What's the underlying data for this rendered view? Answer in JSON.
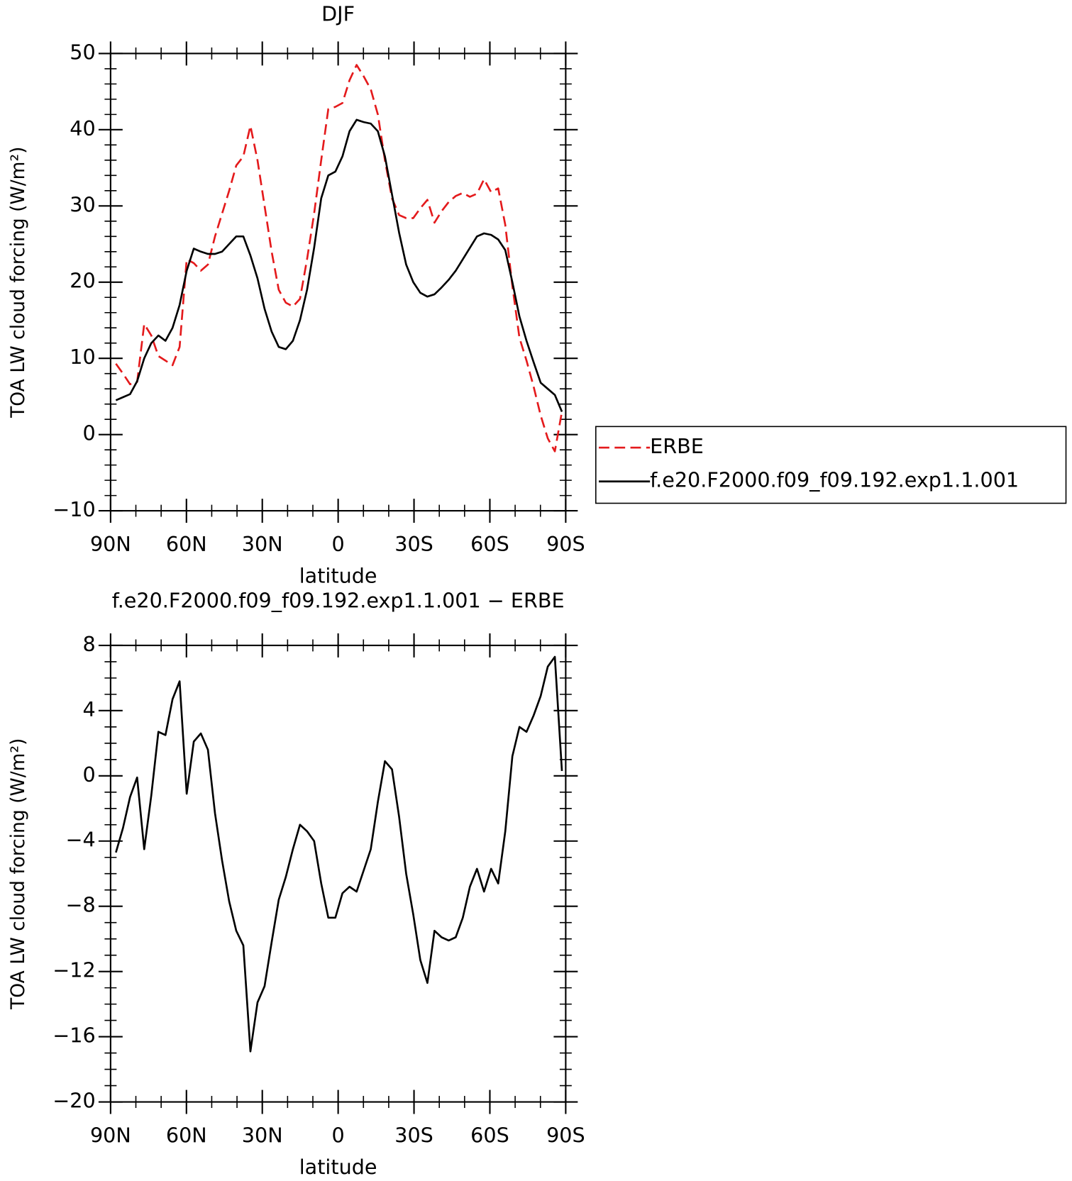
{
  "chart_data": [
    {
      "type": "line",
      "title": "DJF",
      "xlabel": "latitude",
      "ylabel": "TOA LW cloud forcing (W/m²)",
      "x": [
        87.9,
        85.1,
        82.3,
        79.5,
        76.7,
        73.9,
        71.1,
        68.3,
        65.5,
        62.7,
        59.9,
        57.1,
        54.3,
        51.5,
        48.7,
        45.9,
        43.1,
        40.3,
        37.5,
        34.7,
        31.9,
        29.1,
        26.3,
        23.5,
        20.7,
        17.9,
        15.1,
        12.3,
        9.5,
        6.7,
        3.9,
        1.1,
        -1.7,
        -4.5,
        -7.3,
        -10.1,
        -12.9,
        -15.7,
        -18.5,
        -21.3,
        -24.1,
        -26.9,
        -29.7,
        -32.5,
        -35.3,
        -38.1,
        -40.9,
        -43.7,
        -46.5,
        -49.3,
        -52.1,
        -54.9,
        -57.7,
        -60.5,
        -63.3,
        -66.1,
        -68.9,
        -71.7,
        -74.5,
        -77.3,
        -80.1,
        -82.9,
        -85.7,
        -88.5
      ],
      "series": [
        {
          "name": "ERBE",
          "color": "#e41a1c",
          "linestyle": "dashed",
          "values": [
            9.3,
            8,
            6.6,
            6.9,
            14.5,
            13,
            10.3,
            9.7,
            9.1,
            11.5,
            23,
            22.5,
            21.5,
            22.3,
            26,
            29,
            32,
            35.3,
            36.5,
            40.5,
            36,
            30,
            24,
            19,
            17.3,
            16.8,
            17.8,
            23,
            29,
            36,
            42.7,
            43,
            43.5,
            46.5,
            48.5,
            47,
            45.3,
            42,
            36,
            31,
            28.8,
            28.4,
            28.4,
            29.7,
            30.8,
            27.8,
            29.3,
            30.5,
            31.3,
            31.7,
            31.2,
            31.6,
            33.5,
            31.8,
            32.3,
            27.5,
            19.5,
            12.7,
            9.7,
            6.3,
            2.5,
            -0.5,
            -2.2,
            3
          ]
        },
        {
          "name": "f.e20.F2000.f09_f09.192.exp1.1.001",
          "color": "#000000",
          "linestyle": "solid",
          "values": [
            4.5,
            4.9,
            5.3,
            7,
            10,
            12,
            13,
            12.3,
            14,
            17,
            21.5,
            24.4,
            24,
            23.7,
            23.7,
            24,
            25,
            26,
            26,
            23.5,
            20.5,
            16.5,
            13.5,
            11.5,
            11.2,
            12.3,
            15,
            19,
            24.5,
            31,
            34,
            34.5,
            36.5,
            39.8,
            41.3,
            41,
            40.8,
            39.8,
            36.5,
            31.5,
            26.5,
            22.3,
            20,
            18.6,
            18.1,
            18.4,
            19.3,
            20.3,
            21.5,
            23,
            24.5,
            26,
            26.4,
            26.2,
            25.6,
            24.2,
            20,
            15.5,
            12.3,
            9.5,
            6.8,
            6,
            5.2,
            3
          ]
        }
      ],
      "xlim": [
        90,
        -90
      ],
      "xticks": [
        {
          "value": 90,
          "label": "90N"
        },
        {
          "value": 60,
          "label": "60N"
        },
        {
          "value": 30,
          "label": "30N"
        },
        0,
        {
          "value": -30,
          "label": "30S"
        },
        {
          "value": -60,
          "label": "60S"
        },
        {
          "value": -90,
          "label": "90S"
        }
      ],
      "ylim": [
        -10,
        50
      ],
      "yticks": [
        {
          "value": -10,
          "label": "−10"
        },
        0,
        10,
        20,
        30,
        40,
        50
      ],
      "legend": "right"
    },
    {
      "type": "line",
      "title": "f.e20.F2000.f09_f09.192.exp1.1.001 − ERBE",
      "xlabel": "latitude",
      "ylabel": "TOA LW cloud forcing (W/m²)",
      "x": [
        87.9,
        85.1,
        82.3,
        79.5,
        76.7,
        73.9,
        71.1,
        68.3,
        65.5,
        62.7,
        59.9,
        57.1,
        54.3,
        51.5,
        48.7,
        45.9,
        43.1,
        40.3,
        37.5,
        34.7,
        31.9,
        29.1,
        26.3,
        23.5,
        20.7,
        17.9,
        15.1,
        12.3,
        9.5,
        6.7,
        3.9,
        1.1,
        -1.7,
        -4.5,
        -7.3,
        -10.1,
        -12.9,
        -15.7,
        -18.5,
        -21.3,
        -24.1,
        -26.9,
        -29.7,
        -32.5,
        -35.3,
        -38.1,
        -40.9,
        -43.7,
        -46.5,
        -49.3,
        -52.1,
        -54.9,
        -57.7,
        -60.5,
        -63.3,
        -66.1,
        -68.9,
        -71.7,
        -74.5,
        -77.3,
        -80.1,
        -82.9,
        -85.7,
        -88.5
      ],
      "values": [
        -4.7,
        -3.2,
        -1.3,
        -0.1,
        -4.5,
        -1.2,
        2.7,
        2.5,
        4.7,
        5.8,
        -1.1,
        2.1,
        2.6,
        1.6,
        -2.3,
        -5.2,
        -7.7,
        -9.5,
        -10.4,
        -16.9,
        -13.9,
        -12.9,
        -10.2,
        -7.6,
        -6.2,
        -4.5,
        -3,
        -3.4,
        -4,
        -6.6,
        -8.7,
        -8.7,
        -7.2,
        -6.8,
        -7.1,
        -5.8,
        -4.5,
        -1.6,
        0.9,
        0.4,
        -2.5,
        -6,
        -8.5,
        -11.3,
        -12.7,
        -9.5,
        -9.9,
        -10.1,
        -9.9,
        -8.7,
        -6.8,
        -5.7,
        -7.1,
        -5.7,
        -6.6,
        -3.4,
        1.2,
        3,
        2.7,
        3.7,
        4.9,
        6.7,
        7.3,
        0.3
      ],
      "color": "#000000",
      "xlim": [
        90,
        -90
      ],
      "xticks": [
        {
          "value": 90,
          "label": "90N"
        },
        {
          "value": 60,
          "label": "60N"
        },
        {
          "value": 30,
          "label": "30N"
        },
        0,
        {
          "value": -30,
          "label": "30S"
        },
        {
          "value": -60,
          "label": "60S"
        },
        {
          "value": -90,
          "label": "90S"
        }
      ],
      "ylim": [
        -20,
        8
      ],
      "yticks": [
        {
          "value": -20,
          "label": "−20"
        },
        {
          "value": -16,
          "label": "−16"
        },
        {
          "value": -12,
          "label": "−12"
        },
        {
          "value": -8,
          "label": "−8"
        },
        {
          "value": -4,
          "label": "−4"
        },
        0,
        4,
        8
      ]
    }
  ]
}
